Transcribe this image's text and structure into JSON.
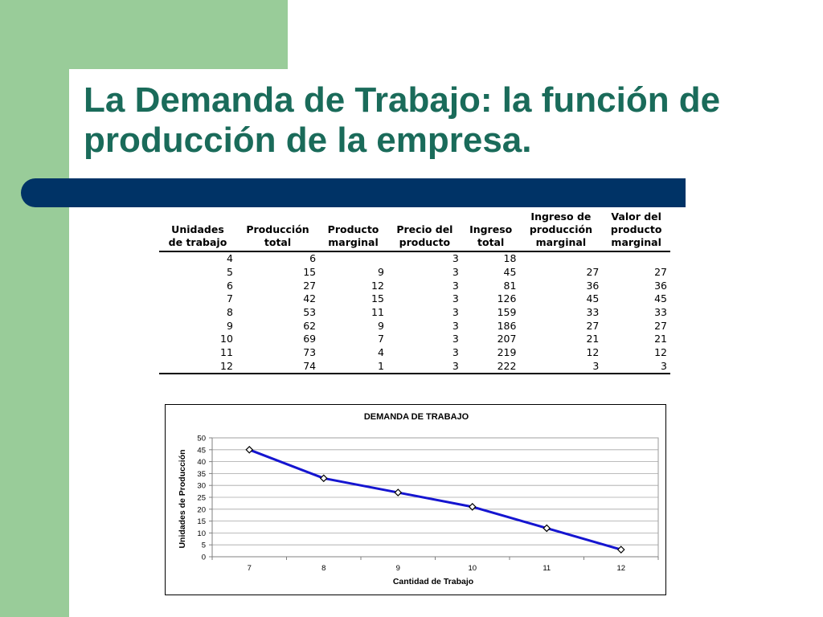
{
  "slide": {
    "title_line1": "La Demanda de Trabajo: la función de",
    "title_line2": "producción de la empresa.",
    "colors": {
      "title": "#1a6b5a",
      "side_bar": "#99cc99",
      "navy_bar": "#003366",
      "series_line": "#1515d0"
    }
  },
  "table": {
    "headers": [
      "Unidades\nde trabajo",
      "Producción\ntotal",
      "Producto\nmarginal",
      "Precio del\nproducto",
      "Ingreso\ntotal",
      "Ingreso de\nproducción\nmarginal",
      "Valor del\nproducto\nmarginal"
    ],
    "rows": [
      [
        "4",
        "6",
        "",
        "3",
        "18",
        "",
        ""
      ],
      [
        "5",
        "15",
        "9",
        "3",
        "45",
        "27",
        "27"
      ],
      [
        "6",
        "27",
        "12",
        "3",
        "81",
        "36",
        "36"
      ],
      [
        "7",
        "42",
        "15",
        "3",
        "126",
        "45",
        "45"
      ],
      [
        "8",
        "53",
        "11",
        "3",
        "159",
        "33",
        "33"
      ],
      [
        "9",
        "62",
        "9",
        "3",
        "186",
        "27",
        "27"
      ],
      [
        "10",
        "69",
        "7",
        "3",
        "207",
        "21",
        "21"
      ],
      [
        "11",
        "73",
        "4",
        "3",
        "219",
        "12",
        "12"
      ],
      [
        "12",
        "74",
        "1",
        "3",
        "222",
        "3",
        "3"
      ]
    ]
  },
  "chart_data": {
    "type": "line",
    "title": "DEMANDA DE TRABAJO",
    "xlabel": "Cantidad de Trabajo",
    "ylabel": "Unidades de Producción",
    "categories": [
      "7",
      "8",
      "9",
      "10",
      "11",
      "12"
    ],
    "series": [
      {
        "values": [
          45,
          33,
          27,
          21,
          12,
          3
        ]
      }
    ],
    "ylim": [
      0,
      50
    ],
    "yticks": [
      0,
      5,
      10,
      15,
      20,
      25,
      30,
      35,
      40,
      45,
      50
    ],
    "grid": true,
    "legend": "none"
  }
}
